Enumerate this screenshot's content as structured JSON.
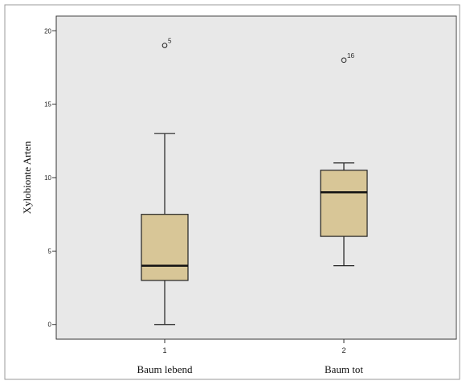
{
  "chart_data": {
    "type": "boxplot",
    "ylabel": "Xylobionte Arten",
    "ylim": [
      -1,
      21
    ],
    "yticks": [
      0,
      5,
      10,
      15,
      20
    ],
    "categories": [
      {
        "index": "1",
        "label": "Baum lebend"
      },
      {
        "index": "2",
        "label": "Baum tot"
      }
    ],
    "boxes": [
      {
        "min": 0,
        "q1": 3,
        "median": 4,
        "q3": 7.5,
        "max": 13,
        "outliers": [
          {
            "value": 19,
            "label": "5"
          }
        ]
      },
      {
        "min": 4,
        "q1": 6,
        "median": 9,
        "q3": 10.5,
        "max": 11,
        "outliers": [
          {
            "value": 18,
            "label": "16"
          }
        ]
      }
    ],
    "colors": {
      "plot_bg": "#e8e8e8",
      "box_fill": "#d8c697",
      "stroke": "#222222",
      "frame": "#999999"
    }
  }
}
